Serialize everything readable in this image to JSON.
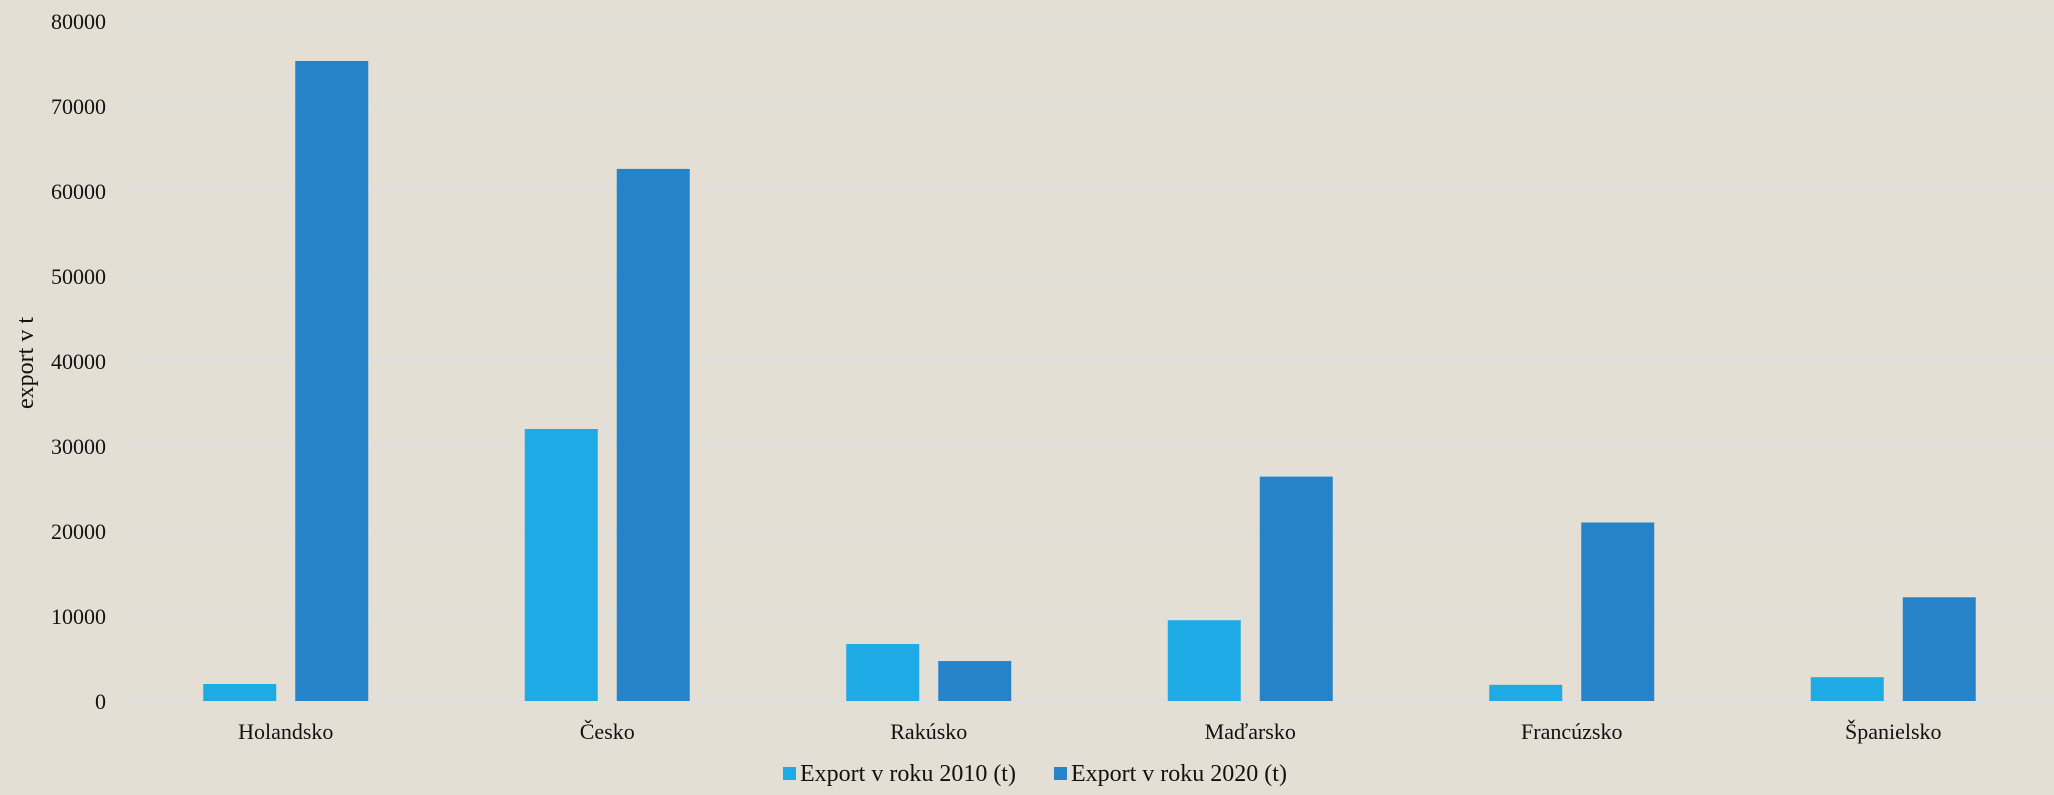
{
  "chart_data": {
    "type": "bar",
    "title": "",
    "xlabel": "",
    "ylabel": "export v t",
    "ylim": [
      0,
      80000
    ],
    "yticks": [
      0,
      10000,
      20000,
      30000,
      40000,
      50000,
      60000,
      70000,
      80000
    ],
    "grid": true,
    "legend_position": "bottom",
    "categories": [
      "Holandsko",
      "Česko",
      "Rakúsko",
      "Maďarsko",
      "Francúzsko",
      "Španielsko"
    ],
    "series": [
      {
        "name": "Export v roku 2010 (t)",
        "color": "#1eaae4",
        "values": [
          2000,
          32000,
          6700,
          9500,
          1900,
          2800
        ]
      },
      {
        "name": "Export v roku 2020 (t)",
        "color": "#2683c9",
        "values": [
          75300,
          62600,
          4700,
          26400,
          21000,
          12200
        ]
      }
    ]
  },
  "colors": {
    "background": "#e4dfd4",
    "grid": "#d8dde0",
    "text": "#111111"
  }
}
